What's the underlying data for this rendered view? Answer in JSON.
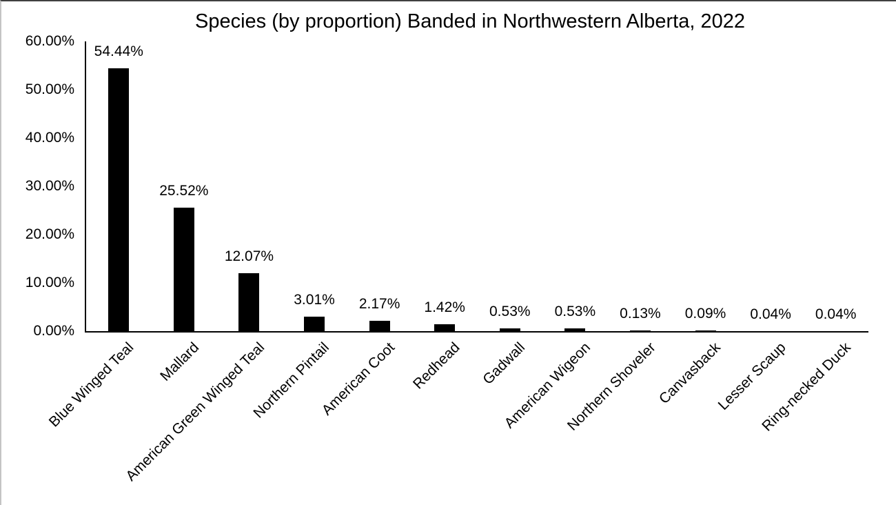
{
  "chart_data": {
    "type": "bar",
    "title": "Species (by proportion) Banded in Northwestern Alberta, 2022",
    "categories": [
      "Blue Winged Teal",
      "Mallard",
      "American Green Winged Teal",
      "Northern Pintail",
      "American Coot",
      "Redhead",
      "Gadwall",
      "American Wigeon",
      "Northern Shoveler",
      "Canvasback",
      "Lesser Scaup",
      "Ring-necked Duck"
    ],
    "values": [
      54.44,
      25.52,
      12.07,
      3.01,
      2.17,
      1.42,
      0.53,
      0.53,
      0.13,
      0.09,
      0.04,
      0.04
    ],
    "value_labels": [
      "54.44%",
      "25.52%",
      "12.07%",
      "3.01%",
      "2.17%",
      "1.42%",
      "0.53%",
      "0.53%",
      "0.13%",
      "0.09%",
      "0.04%",
      "0.04%"
    ],
    "y_tick_labels": [
      "60.00%",
      "50.00%",
      "40.00%",
      "30.00%",
      "20.00%",
      "10.00%",
      "0.00%"
    ],
    "y_tick_values": [
      60,
      50,
      40,
      30,
      20,
      10,
      0
    ],
    "ylim": [
      0,
      60
    ],
    "xlabel": "",
    "ylabel": "",
    "grid": "off",
    "legend": "none",
    "bar_color": "#000000",
    "text_color": "#000000",
    "axis_color": "#000000"
  }
}
